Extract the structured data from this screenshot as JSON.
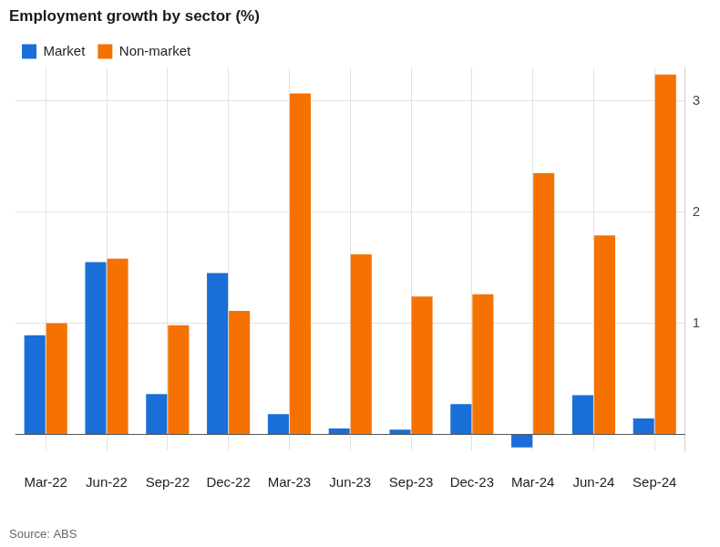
{
  "chart_data": {
    "type": "bar",
    "title": "Employment growth by sector (%)",
    "source": "Source: ABS",
    "categories": [
      "Mar-22",
      "Jun-22",
      "Sep-22",
      "Dec-22",
      "Mar-23",
      "Jun-23",
      "Sep-23",
      "Dec-23",
      "Mar-24",
      "Jun-24",
      "Sep-24"
    ],
    "series": [
      {
        "name": "Market",
        "color": "#1a6ed8",
        "values": [
          0.89,
          1.55,
          0.36,
          1.45,
          0.18,
          0.05,
          0.04,
          0.27,
          -0.12,
          0.35,
          0.14
        ]
      },
      {
        "name": "Non-market",
        "color": "#f57200",
        "values": [
          1.0,
          1.58,
          0.98,
          1.11,
          3.07,
          1.62,
          1.24,
          1.26,
          2.35,
          1.79,
          3.24
        ]
      }
    ],
    "ylim": [
      -0.15,
      3.3
    ],
    "yticks": [
      1,
      2,
      3
    ],
    "grid": true,
    "legend": "top left"
  }
}
